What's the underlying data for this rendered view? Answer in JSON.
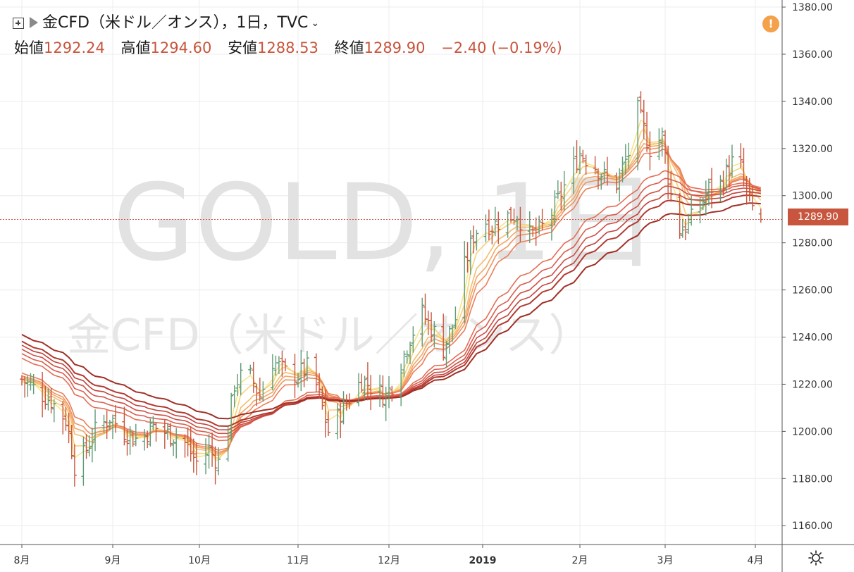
{
  "header": {
    "symbol_line": "金CFD（米ドル／オンス），1日，TVC",
    "open_label": "始値",
    "open_value": "1292.24",
    "high_label": "高値",
    "high_value": "1294.60",
    "low_label": "安値",
    "low_value": "1288.53",
    "close_label": "終値",
    "close_value": "1289.90",
    "change": "−2.40 (−0.19%)"
  },
  "watermark": {
    "line1": "GOLD, 1日",
    "line2": "金CFD（米ドル／オンス）"
  },
  "price_tag": "1289.90",
  "alert_icon": "!",
  "colors": {
    "up": "#5e9c76",
    "down": "#c8553d",
    "ribbon_fast": "#f5e27a",
    "ribbon_slow": "#a8321e",
    "tag": "#c8553d"
  },
  "chart_data": {
    "type": "ohlc_bar_with_ma_ribbon",
    "symbol": "GOLD",
    "title": "金CFD（米ドル／オンス）",
    "interval": "1日",
    "source": "TVC",
    "y_axis_labels": [
      "1380.00",
      "1360.00",
      "1340.00",
      "1320.00",
      "1300.00",
      "1280.00",
      "1260.00",
      "1240.00",
      "1220.00",
      "1200.00",
      "1180.00",
      "1160.00"
    ],
    "ylim": [
      1152,
      1383
    ],
    "x_axis_labels": [
      "8月",
      "9月",
      "10月",
      "11月",
      "12月",
      "2019",
      "2月",
      "3月",
      "4月"
    ],
    "x_anchors": [
      {
        "label": "8月",
        "day": 0
      },
      {
        "label": "9月",
        "day": 31
      },
      {
        "label": "10月",
        "day": 61
      },
      {
        "label": "11月",
        "day": 92
      },
      {
        "label": "12月",
        "day": 122
      },
      {
        "label": "2019",
        "day": 153
      },
      {
        "label": "2月",
        "day": 184
      },
      {
        "label": "3月",
        "day": 212
      },
      {
        "label": "4月",
        "day": 243
      }
    ],
    "close_path": [
      [
        0,
        1222
      ],
      [
        10,
        1213
      ],
      [
        15,
        1205
      ],
      [
        17,
        1193
      ],
      [
        19,
        1178
      ],
      [
        21,
        1190
      ],
      [
        25,
        1200
      ],
      [
        30,
        1206
      ],
      [
        35,
        1200
      ],
      [
        40,
        1196
      ],
      [
        45,
        1202
      ],
      [
        50,
        1199
      ],
      [
        55,
        1197
      ],
      [
        60,
        1187
      ],
      [
        64,
        1192
      ],
      [
        68,
        1185
      ],
      [
        70,
        1202
      ],
      [
        72,
        1220
      ],
      [
        76,
        1226
      ],
      [
        80,
        1215
      ],
      [
        84,
        1230
      ],
      [
        88,
        1225
      ],
      [
        92,
        1224
      ],
      [
        96,
        1228
      ],
      [
        99,
        1215
      ],
      [
        102,
        1200
      ],
      [
        105,
        1206
      ],
      [
        108,
        1212
      ],
      [
        113,
        1222
      ],
      [
        117,
        1218
      ],
      [
        121,
        1215
      ],
      [
        125,
        1225
      ],
      [
        129,
        1240
      ],
      [
        133,
        1250
      ],
      [
        137,
        1242
      ],
      [
        140,
        1235
      ],
      [
        144,
        1248
      ],
      [
        147,
        1270
      ],
      [
        150,
        1283
      ],
      [
        153,
        1290
      ],
      [
        156,
        1287
      ],
      [
        160,
        1291
      ],
      [
        164,
        1292
      ],
      [
        168,
        1283
      ],
      [
        171,
        1285
      ],
      [
        174,
        1290
      ],
      [
        177,
        1298
      ],
      [
        181,
        1310
      ],
      [
        184,
        1318
      ],
      [
        188,
        1314
      ],
      [
        192,
        1308
      ],
      [
        196,
        1305
      ],
      [
        200,
        1318
      ],
      [
        203,
        1336
      ],
      [
        207,
        1320
      ],
      [
        211,
        1325
      ],
      [
        214,
        1300
      ],
      [
        216,
        1285
      ],
      [
        219,
        1287
      ],
      [
        223,
        1293
      ],
      [
        227,
        1303
      ],
      [
        231,
        1305
      ],
      [
        234,
        1312
      ],
      [
        237,
        1318
      ],
      [
        240,
        1300
      ],
      [
        243,
        1292
      ],
      [
        245,
        1290
      ]
    ],
    "ma_periods": [
      3,
      5,
      8,
      10,
      12,
      15,
      30,
      35,
      40,
      45,
      50,
      60
    ],
    "last_bar": {
      "open": 1292.24,
      "high": 1294.6,
      "low": 1288.53,
      "close": 1289.9,
      "change": -2.4,
      "change_pct": -0.19
    }
  }
}
